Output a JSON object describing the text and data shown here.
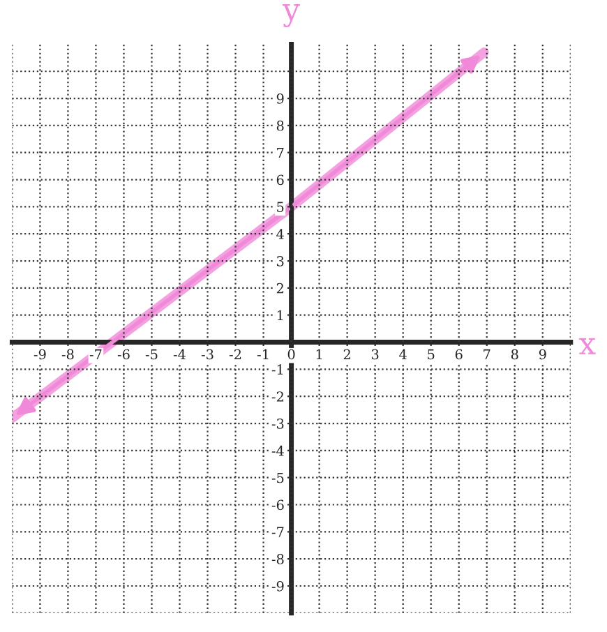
{
  "chart_data": {
    "type": "line",
    "xlabel": "x",
    "ylabel": "y",
    "x": [
      -10,
      0,
      6.9
    ],
    "series": [
      {
        "color": "#f08ad8",
        "values": [
          -2.8,
          5,
          10.7
        ]
      }
    ],
    "xlim": [
      -10,
      10
    ],
    "ylim": [
      -10,
      11
    ],
    "xticks": [
      {
        "value": -10,
        "label": null
      },
      -9,
      -8,
      -7,
      -6,
      -5,
      -4,
      -3,
      -2,
      -1,
      0,
      1,
      2,
      3,
      4,
      5,
      6,
      7,
      8,
      9,
      {
        "value": 10,
        "label": null
      }
    ],
    "yticks": [
      {
        "value": -10,
        "label": null
      },
      -9,
      -8,
      -7,
      -6,
      -5,
      -4,
      -3,
      -2,
      -1,
      1,
      2,
      3,
      4,
      5,
      6,
      7,
      8,
      9,
      {
        "value": 10,
        "label": null
      }
    ],
    "grid": true,
    "marker": "none",
    "line_style": "solid",
    "legend": false
  }
}
